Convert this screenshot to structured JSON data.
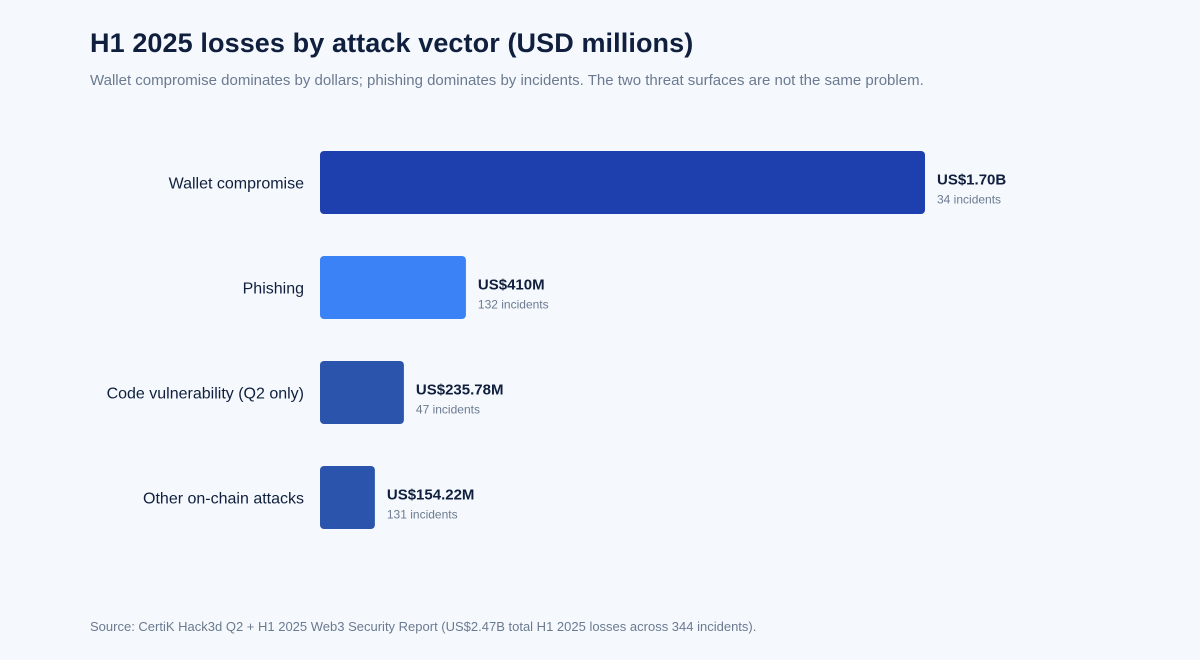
{
  "header": {
    "title": "H1 2025 losses by attack vector (USD millions)",
    "subtitle": "Wallet compromise dominates by dollars; phishing dominates by incidents. The two threat surfaces are not the same problem."
  },
  "chart_data": {
    "type": "bar",
    "orientation": "horizontal",
    "title": "H1 2025 losses by attack vector (USD millions)",
    "categories": [
      "Wallet compromise",
      "Phishing",
      "Code vulnerability (Q2 only)",
      "Other on-chain attacks"
    ],
    "values": [
      1700,
      410,
      235.78,
      154.22
    ],
    "value_labels": [
      "US$1.70B",
      "US$410M",
      "US$235.78M",
      "US$154.22M"
    ],
    "incident_labels": [
      "34 incidents",
      "132 incidents",
      "47 incidents",
      "131 incidents"
    ],
    "colors": [
      "#1e40af",
      "#3b82f6",
      "#2b55ad",
      "#2b55ad"
    ],
    "xlabel": "",
    "ylabel": "",
    "grid": false
  },
  "footer": {
    "source": "Source: CertiK Hack3d Q2 + H1 2025 Web3 Security Report (US$2.47B total H1 2025 losses across 344 incidents)."
  }
}
